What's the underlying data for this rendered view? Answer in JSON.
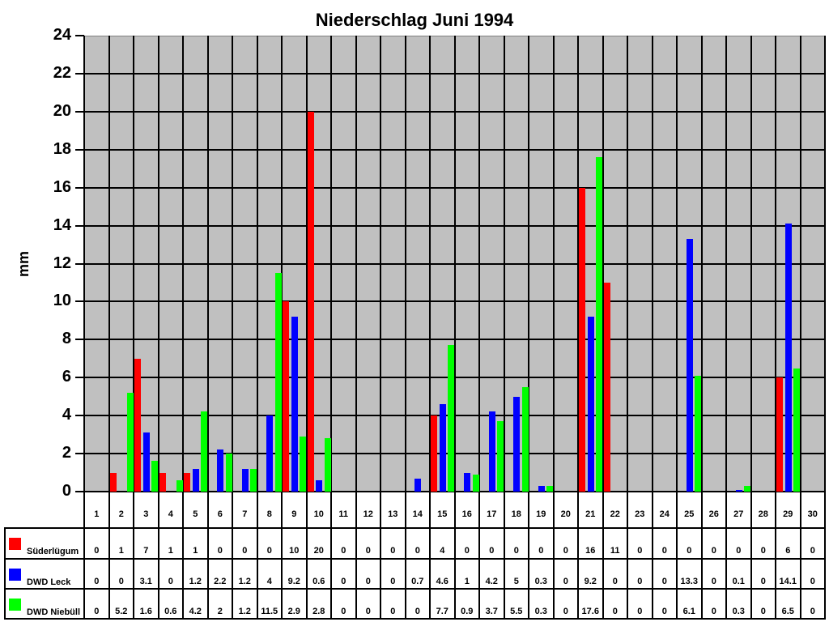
{
  "chart_data": {
    "type": "bar",
    "title": "Niederschlag Juni 1994",
    "xlabel": "",
    "ylabel": "mm",
    "ylim": [
      0,
      24
    ],
    "yticks": [
      0,
      2,
      4,
      6,
      8,
      10,
      12,
      14,
      16,
      18,
      20,
      22,
      24
    ],
    "grid": true,
    "legend_position": "data-table-bottom",
    "categories": [
      "1",
      "2",
      "3",
      "4",
      "5",
      "6",
      "7",
      "8",
      "9",
      "10",
      "11",
      "12",
      "13",
      "14",
      "15",
      "16",
      "17",
      "18",
      "19",
      "20",
      "21",
      "22",
      "23",
      "24",
      "25",
      "26",
      "27",
      "28",
      "29",
      "30"
    ],
    "series": [
      {
        "name": "Süderlügum",
        "color": "#ff0000",
        "values": [
          0,
          1,
          7,
          1,
          1,
          0,
          0,
          0,
          10,
          20,
          0,
          0,
          0,
          0,
          4,
          0,
          0,
          0,
          0,
          0,
          16,
          11,
          0,
          0,
          0,
          0,
          0,
          0,
          6,
          0
        ]
      },
      {
        "name": "DWD Leck",
        "color": "#0000ff",
        "values": [
          0,
          0,
          3.1,
          0,
          1.2,
          2.2,
          1.2,
          4,
          9.2,
          0.6,
          0,
          0,
          0,
          0.7,
          4.6,
          1,
          4.2,
          5,
          0.3,
          0,
          9.2,
          0,
          0,
          0,
          13.3,
          0,
          0.1,
          0,
          14.1,
          0
        ]
      },
      {
        "name": "DWD Niebüll",
        "color": "#00ff00",
        "values": [
          0,
          5.2,
          1.6,
          0.6,
          4.2,
          2,
          1.2,
          11.5,
          2.9,
          2.8,
          0,
          0,
          0,
          0,
          7.7,
          0.9,
          3.7,
          5.5,
          0.3,
          0,
          17.6,
          0,
          0,
          0,
          6.1,
          0,
          0.3,
          0,
          6.5,
          0
        ]
      }
    ]
  },
  "colors": {
    "plot_background": "#c0c0c0",
    "gridline": "#000000"
  }
}
